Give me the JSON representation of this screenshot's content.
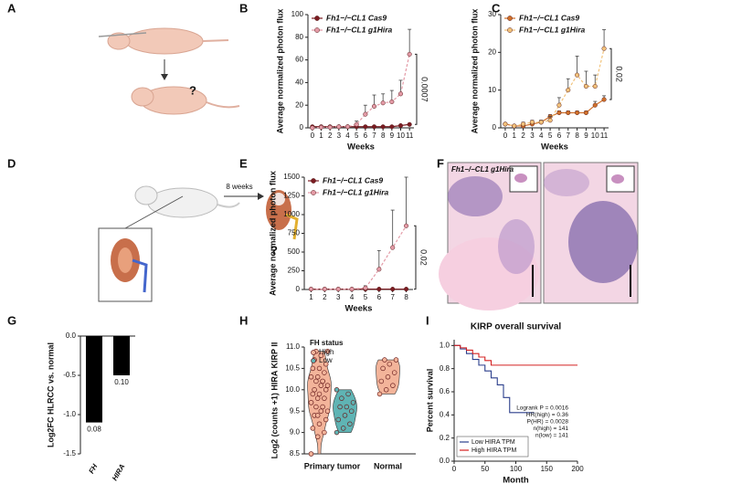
{
  "panel_labels": [
    "A",
    "B",
    "C",
    "D",
    "E",
    "F",
    "G",
    "H",
    "I"
  ],
  "panel_a": {
    "question": "?"
  },
  "panel_d": {
    "arrow_label": "8 weeks",
    "question": "?"
  },
  "panel_f": {
    "label": "Fh1−/−CL1 g1Hira"
  },
  "chart_data": [
    {
      "type": "line",
      "ylabel": "Average normalized photon flux",
      "xlabel": "Weeks",
      "x": [
        0,
        1,
        2,
        3,
        4,
        5,
        6,
        7,
        8,
        9,
        10,
        11
      ],
      "xlim": [
        -0.5,
        11.5
      ],
      "xticks": [
        0,
        1,
        2,
        3,
        4,
        5,
        6,
        7,
        8,
        9,
        10,
        11
      ],
      "ylim": [
        0,
        100
      ],
      "yticks": [
        0,
        20,
        40,
        60,
        80,
        100
      ],
      "series": [
        {
          "name": "Fh1−/−CL1 Cas9",
          "color": "#7b1c22",
          "values": [
            1,
            1,
            1,
            1,
            1,
            1,
            1,
            1,
            1,
            1,
            2,
            3
          ]
        },
        {
          "name": "Fh1−/−CL1 g1Hira",
          "color": "#e39aa6",
          "dashed": true,
          "values": [
            0,
            0.5,
            0.5,
            1,
            1,
            3,
            12,
            19,
            22,
            23,
            30,
            65
          ],
          "errors": [
            0,
            0,
            0,
            0,
            0,
            3,
            8,
            10,
            8,
            10,
            12,
            22
          ]
        }
      ],
      "annotation": "0.0007"
    },
    {
      "type": "line",
      "ylabel": "Average normalized photon flux",
      "xlabel": "Weeks",
      "x": [
        0,
        1,
        2,
        3,
        4,
        5,
        6,
        7,
        8,
        9,
        10,
        11
      ],
      "xlim": [
        -0.5,
        11.5
      ],
      "xticks": [
        0,
        1,
        2,
        3,
        4,
        5,
        6,
        7,
        8,
        9,
        10,
        11
      ],
      "ylim": [
        0,
        30
      ],
      "yticks": [
        0,
        10,
        20,
        30
      ],
      "series": [
        {
          "name": "Fh1−/−CL1 Cas9",
          "color": "#d0702a",
          "values": [
            1,
            0.5,
            0.5,
            1,
            1.5,
            3,
            4,
            4,
            4,
            4,
            6,
            7.5
          ],
          "errors": [
            0,
            0,
            0,
            0,
            0.5,
            0.5,
            0.5,
            0.5,
            0.5,
            0.5,
            1,
            1
          ]
        },
        {
          "name": "Fh1−/−CL1 g1Hira",
          "color": "#f2c27a",
          "dashed": true,
          "values": [
            1,
            0.5,
            1,
            1.5,
            1.5,
            2,
            6,
            10,
            14,
            11,
            11,
            21
          ],
          "errors": [
            0,
            0,
            0.5,
            0.5,
            0.5,
            1,
            2,
            3,
            5,
            4,
            3,
            5
          ]
        }
      ],
      "annotation": "0.02"
    },
    {
      "type": "line",
      "ylabel": "Average normalized photon flux",
      "xlabel": "Weeks",
      "x": [
        1,
        2,
        3,
        4,
        5,
        6,
        7,
        8
      ],
      "xlim": [
        0.5,
        8.5
      ],
      "xticks": [
        1,
        2,
        3,
        4,
        5,
        6,
        7,
        8
      ],
      "ylim": [
        0,
        1500
      ],
      "yticks": [
        0,
        250,
        500,
        750,
        1000,
        1250,
        1500
      ],
      "series": [
        {
          "name": "Fh1−/−CL1 Cas9",
          "color": "#7b1c22",
          "values": [
            5,
            5,
            5,
            5,
            5,
            5,
            5,
            5
          ]
        },
        {
          "name": "Fh1−/−CL1 g1Hira",
          "color": "#e39aa6",
          "dashed": true,
          "values": [
            5,
            5,
            5,
            5,
            20,
            270,
            560,
            850
          ],
          "errors": [
            0,
            0,
            0,
            0,
            30,
            250,
            500,
            650
          ]
        }
      ],
      "annotation": "0.02"
    },
    {
      "type": "bar",
      "ylabel": "Log2FC HLRCC vs. normal",
      "categories": [
        "FH",
        "HIRA"
      ],
      "values": [
        -1.1,
        -0.5
      ],
      "annotations": [
        "0.08",
        "0.10"
      ],
      "color": "#000000",
      "ylim": [
        -1.5,
        0
      ],
      "yticks": [
        {
          "value": 0,
          "label": "0.0"
        },
        -0.5,
        {
          "value": -1,
          "label": "-1.0"
        },
        -1.5
      ]
    },
    {
      "type": "dot_violin",
      "ylabel": "Log2 (counts +1) HIRA KIRP II",
      "legend_title": "FH status",
      "categories": [
        "Primary tumor",
        "Normal"
      ],
      "ylim": [
        8.5,
        11
      ],
      "yticks": [
        8.5,
        {
          "value": 9,
          "label": "9.0"
        },
        9.5,
        {
          "value": 10,
          "label": "10.0"
        },
        10.5,
        {
          "value": 11,
          "label": "11.0"
        }
      ],
      "series": [
        {
          "name": "High",
          "color": "#f3b49a",
          "values": [
            [
              8.5,
              8.9,
              9.0,
              9.1,
              9.2,
              9.3,
              9.4,
              9.5,
              9.5,
              9.6,
              9.6,
              9.7,
              9.8,
              9.8,
              9.9,
              9.9,
              10.0,
              10.0,
              10.1,
              10.1,
              10.2,
              10.2,
              10.3,
              10.3,
              10.4,
              10.5,
              10.5,
              10.6,
              10.7,
              10.8,
              10.9,
              10.9,
              10.2,
              9.7,
              9.4
            ],
            [
              9.9,
              10.0,
              10.1,
              10.2,
              10.3,
              10.4,
              10.5,
              10.6,
              10.7,
              10.7
            ]
          ]
        },
        {
          "name": "Low",
          "color": "#5fb4b4",
          "values": [
            [
              9.0,
              9.1,
              9.2,
              9.3,
              9.4,
              9.5,
              9.6,
              9.6,
              9.7,
              9.8,
              9.9,
              10.0
            ],
            []
          ]
        }
      ]
    },
    {
      "type": "survival",
      "title": "KIRP overall survival",
      "xlabel": "Month",
      "ylabel": "Percent survival",
      "xlim": [
        0,
        200
      ],
      "xticks": [
        0,
        50,
        100,
        150,
        200
      ],
      "ylim": [
        0,
        1.05
      ],
      "yticks": [
        {
          "value": 0,
          "label": "0.0"
        },
        0.2,
        0.4,
        0.6,
        0.8,
        {
          "value": 1,
          "label": "1.0"
        }
      ],
      "series": [
        {
          "name": "Low HIRA TPM",
          "color": "#2b3f8c",
          "x": [
            0,
            10,
            20,
            30,
            40,
            50,
            60,
            70,
            80,
            90,
            100,
            130
          ],
          "values": [
            1,
            0.97,
            0.93,
            0.88,
            0.83,
            0.78,
            0.72,
            0.66,
            0.55,
            0.42,
            0.42,
            0.42
          ]
        },
        {
          "name": "High HIRA TPM",
          "color": "#d42020",
          "x": [
            0,
            10,
            20,
            30,
            40,
            50,
            60,
            70,
            200
          ],
          "values": [
            1,
            0.98,
            0.96,
            0.93,
            0.9,
            0.87,
            0.83,
            0.83,
            0.83
          ]
        }
      ],
      "annotations": [
        "Logrank P = 0.0016",
        "HR(high) = 0.36",
        "P(HR) = 0.0028",
        "n(high) = 141",
        "n(low) = 141"
      ]
    }
  ]
}
